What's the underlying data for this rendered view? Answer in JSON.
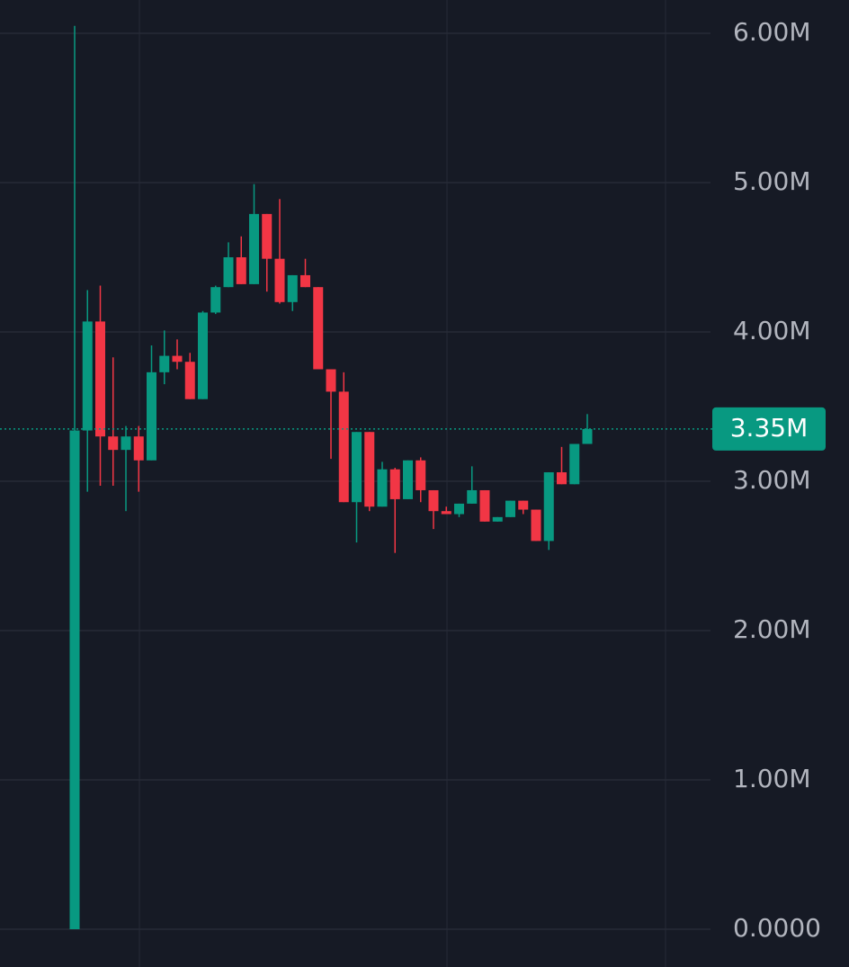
{
  "chart_data": {
    "type": "candlestick",
    "series": [
      {
        "up_color": "#089981",
        "down_color": "#f23645",
        "open": [
          0,
          3.34,
          4.07,
          3.3,
          3.21,
          3.3,
          3.14,
          3.73,
          3.84,
          3.8,
          3.55,
          4.13,
          4.3,
          4.5,
          4.32,
          4.79,
          4.49,
          4.2,
          4.38,
          4.3,
          3.75,
          3.6,
          2.86,
          3.33,
          2.83,
          3.08,
          2.88,
          3.14,
          2.94,
          2.8,
          2.78,
          2.85,
          2.94,
          2.73,
          2.76,
          2.87,
          2.81,
          2.6,
          3.06,
          2.98,
          3.25
        ],
        "high": [
          6.05,
          4.28,
          4.31,
          3.83,
          3.37,
          3.37,
          3.91,
          4.01,
          3.95,
          3.86,
          4.14,
          4.31,
          4.6,
          4.64,
          4.99,
          4.79,
          4.89,
          4.38,
          4.49,
          4.3,
          3.75,
          3.73,
          3.33,
          3.33,
          3.13,
          3.09,
          3.14,
          3.16,
          2.94,
          2.83,
          2.85,
          3.1,
          2.94,
          2.76,
          2.87,
          2.87,
          2.81,
          3.06,
          3.23,
          3.25,
          3.45
        ],
        "low": [
          0,
          2.93,
          2.97,
          2.97,
          2.8,
          2.93,
          3.14,
          3.65,
          3.75,
          3.55,
          3.55,
          4.12,
          4.3,
          4.32,
          4.32,
          4.27,
          4.19,
          4.14,
          4.3,
          3.75,
          3.15,
          2.86,
          2.59,
          2.8,
          2.83,
          2.52,
          2.88,
          2.86,
          2.68,
          2.78,
          2.76,
          2.85,
          2.73,
          2.73,
          2.76,
          2.78,
          2.6,
          2.54,
          2.98,
          2.98,
          3.25
        ],
        "close": [
          3.34,
          4.07,
          3.3,
          3.21,
          3.3,
          3.14,
          3.73,
          3.84,
          3.8,
          3.55,
          4.13,
          4.3,
          4.5,
          4.32,
          4.79,
          4.49,
          4.2,
          4.38,
          4.3,
          3.75,
          3.6,
          2.86,
          3.33,
          2.83,
          3.08,
          2.88,
          3.14,
          2.94,
          2.8,
          2.78,
          2.85,
          2.94,
          2.73,
          2.76,
          2.87,
          2.81,
          2.6,
          3.06,
          2.98,
          3.25,
          3.35
        ]
      }
    ],
    "ylim": [
      -0.253,
      6.223
    ],
    "yticks": [
      {
        "value": 0,
        "label": "0.0000"
      },
      {
        "value": 1,
        "label": "1.00M"
      },
      {
        "value": 2,
        "label": "2.00M"
      },
      {
        "value": 3,
        "label": "3.00M"
      },
      {
        "value": 4,
        "label": "4.00M"
      },
      {
        "value": 5,
        "label": "5.00M"
      },
      {
        "value": 6,
        "label": "6.00M"
      }
    ],
    "last_price": {
      "value": 3.35,
      "label": "3.35M"
    },
    "grid": true
  }
}
